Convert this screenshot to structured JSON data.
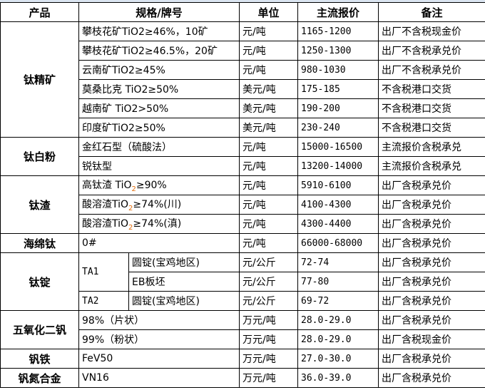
{
  "headers": {
    "product": "产品",
    "spec": "规格/牌号",
    "unit": "单位",
    "price": "主流报价",
    "remark": "备注"
  },
  "groups": {
    "ti_conc": "钛精矿",
    "ti_white": "钛白粉",
    "ti_slag": "钛渣",
    "sponge": "海绵钛",
    "ingot": "钛锭",
    "v2o5": "五氧化二钒",
    "fev": "钒铁",
    "vn": "钒氮合金"
  },
  "rows": [
    {
      "spec": "攀枝花矿TiO2≥46%，10矿",
      "unit": "元/吨",
      "price": "1165-1200",
      "remark": "出厂不含税现金价"
    },
    {
      "spec": "攀枝花矿TiO2≥46.5%，20矿",
      "unit": "元/吨",
      "price": "1250-1300",
      "remark": "出厂不含税承兑价"
    },
    {
      "spec": "云南矿TiO2≥45%",
      "unit": "元/吨",
      "price": "980-1030",
      "remark": "出厂不含税承兑价"
    },
    {
      "spec": "莫桑比克 TiO2≥50%",
      "unit": "美元/吨",
      "price": "175-185",
      "remark": "不含税港口交货"
    },
    {
      "spec": "越南矿 TiO2>50%",
      "unit": "美元/吨",
      "price": "190-200",
      "remark": "不含税港口交货"
    },
    {
      "spec": "印度矿TiO2≥50%",
      "unit": "美元/吨",
      "price": "230-240",
      "remark": "不含税港口交货"
    },
    {
      "spec": "金红石型（硫酸法）",
      "unit": "元/吨",
      "price": "15000-16500",
      "remark": "主流报价含税承兑"
    },
    {
      "spec": "锐钛型",
      "unit": "元/吨",
      "price": "13200-14000",
      "remark": "主流报价含税承兑"
    },
    {
      "spec_pre": "高钛渣 TiO",
      "spec_sub": "2",
      "spec_post": "≥90%",
      "unit": "元/吨",
      "price": "5910-6100",
      "remark": "出厂含税承兑价"
    },
    {
      "spec_pre": "酸溶渣TiO",
      "spec_sub": "2",
      "spec_post": "≥74%(川)",
      "unit": "元/吨",
      "price": "4100-4300",
      "remark": "出厂含税承兑价"
    },
    {
      "spec_pre": "酸溶渣TiO",
      "spec_sub": "2",
      "spec_post": "≥74%(滇)",
      "unit": "元/吨",
      "price": "4300-4400",
      "remark": "出厂含税承兑价"
    },
    {
      "spec": "0#",
      "unit": "元/吨",
      "price": "66000-68000",
      "remark": "出厂含税承兑价"
    },
    {
      "grade": "TA1",
      "spec": "圆锭(宝鸡地区)",
      "unit": "元/公斤",
      "price": "72-74",
      "remark": "出厂含税承兑价"
    },
    {
      "spec": "EB板坯",
      "unit": "元/公斤",
      "price": "77-80",
      "remark": "出厂含税承兑价"
    },
    {
      "grade": "TA2",
      "spec": "圆锭(宝鸡地区)",
      "unit": "元/公斤",
      "price": "69-72",
      "remark": "出厂含税承兑价"
    },
    {
      "spec": "98%（片状）",
      "unit": "万元/吨",
      "price": "28.0-29.0",
      "remark": "出厂含税承兑价"
    },
    {
      "spec": "99%（粉状）",
      "unit": "万元/吨",
      "price": "28.0-29.0",
      "remark": "出厂含税现金价"
    },
    {
      "spec": "FeV50",
      "unit": "万元/吨",
      "price": "27.0-30.0",
      "remark": "出厂含税承兑价"
    },
    {
      "spec": "VN16",
      "unit": "万元/吨",
      "price": "36.0-39.0",
      "remark": "出厂含税承兑价"
    }
  ]
}
